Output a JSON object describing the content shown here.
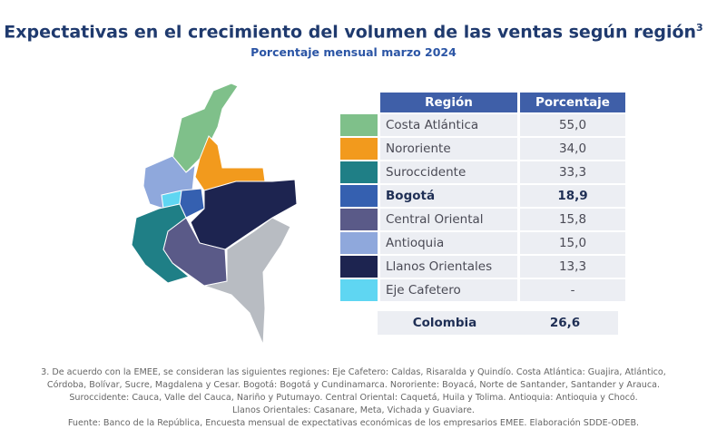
{
  "header": {
    "title": "Expectativas en el crecimiento del volumen de las ventas según región",
    "footnote_mark": "3",
    "subtitle": "Porcentaje mensual marzo 2024"
  },
  "table": {
    "columns": [
      "Región",
      "Porcentaje"
    ],
    "rows": [
      {
        "region": "Costa Atlántica",
        "value": "55,0",
        "color": "#7fc08a",
        "bold": false
      },
      {
        "region": "Nororiente",
        "value": "34,0",
        "color": "#f29a1d",
        "bold": false
      },
      {
        "region": "Suroccidente",
        "value": "33,3",
        "color": "#1f7f86",
        "bold": false
      },
      {
        "region": "Bogotá",
        "value": "18,9",
        "color": "#3560b0",
        "bold": true
      },
      {
        "region": "Central Oriental",
        "value": "15,8",
        "color": "#5a5a88",
        "bold": false
      },
      {
        "region": "Antioquia",
        "value": "15,0",
        "color": "#8fa8dc",
        "bold": false
      },
      {
        "region": "Llanos Orientales",
        "value": "13,3",
        "color": "#1d2450",
        "bold": false
      },
      {
        "region": "Eje Cafetero",
        "value": "-",
        "color": "#5fd6f2",
        "bold": false
      }
    ],
    "total": {
      "region": "Colombia",
      "value": "26,6"
    }
  },
  "footnotes": [
    "3. De acuerdo con la EMEE, se consideran las siguientes regiones: Eje Cafetero: Caldas, Risaralda y Quindío. Costa Atlántica: Guajira, Atlántico,",
    "Córdoba, Bolívar, Sucre, Magdalena y Cesar. Bogotá: Bogotá y Cundinamarca. Nororiente: Boyacá, Norte de Santander, Santander y Arauca.",
    "Suroccidente: Cauca, Valle del Cauca, Nariño y Putumayo. Central Oriental: Caquetá, Huila y Tolima. Antioquia: Antioquia y Chocó.",
    "Llanos Orientales: Casanare, Meta, Vichada y Guaviare.",
    "Fuente: Banco de la República, Encuesta mensual de expectativas económicas de los empresarios EMEE. Elaboración SDDE-ODEB."
  ]
}
